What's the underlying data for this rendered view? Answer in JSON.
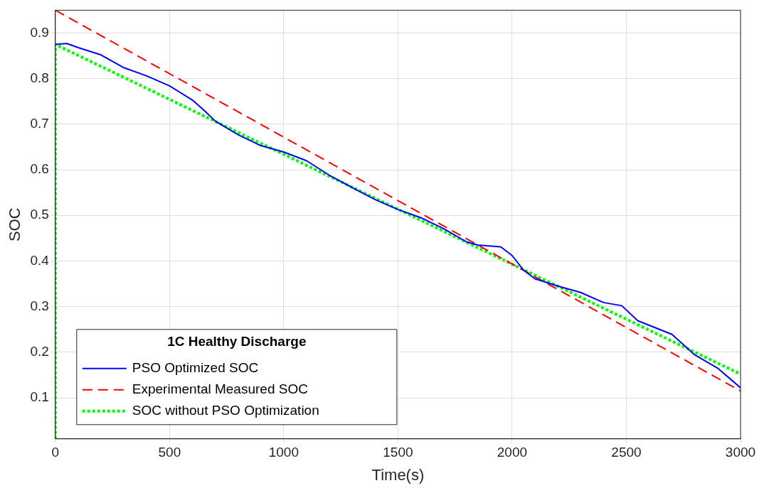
{
  "chart_data": {
    "type": "line",
    "xlabel": "Time(s)",
    "ylabel": "SOC",
    "legend_title": "1C Healthy Discharge",
    "legend": "bottom left",
    "grid": true,
    "marker": "none",
    "xlim": [
      0,
      3000
    ],
    "xticks": [
      0,
      500,
      1000,
      1500,
      2000,
      2500,
      3000
    ],
    "ylim": [
      0.01,
      0.95
    ],
    "yticks": [
      0.1,
      0.2,
      0.3,
      0.4,
      0.5,
      0.6,
      0.7,
      0.8,
      0.9
    ],
    "series": [
      {
        "name": "PSO Optimized SOC",
        "color": "#0000ff",
        "line_style": "solid",
        "x": [
          0,
          50,
          100,
          200,
          300,
          400,
          500,
          600,
          650,
          700,
          800,
          900,
          1000,
          1100,
          1200,
          1300,
          1400,
          1500,
          1600,
          1700,
          1800,
          1850,
          1950,
          2000,
          2050,
          2100,
          2200,
          2300,
          2400,
          2480,
          2550,
          2700,
          2800,
          2900,
          3000
        ],
        "values": [
          0.875,
          0.877,
          0.868,
          0.852,
          0.824,
          0.806,
          0.784,
          0.753,
          0.731,
          0.707,
          0.677,
          0.653,
          0.639,
          0.62,
          0.588,
          0.561,
          0.535,
          0.513,
          0.495,
          0.471,
          0.442,
          0.435,
          0.431,
          0.412,
          0.38,
          0.361,
          0.345,
          0.331,
          0.309,
          0.302,
          0.269,
          0.239,
          0.194,
          0.165,
          0.122
        ]
      },
      {
        "name": "Experimental Measured SOC",
        "color": "#ff0000",
        "line_style": "dashed",
        "x": [
          0,
          3000
        ],
        "values": [
          0.95,
          0.115
        ]
      },
      {
        "name": "SOC without PSO Optimization",
        "color": "#00ff00",
        "line_style": "dotted",
        "x": [
          0,
          0,
          3000
        ],
        "values": [
          0.01,
          0.875,
          0.152
        ]
      }
    ]
  }
}
